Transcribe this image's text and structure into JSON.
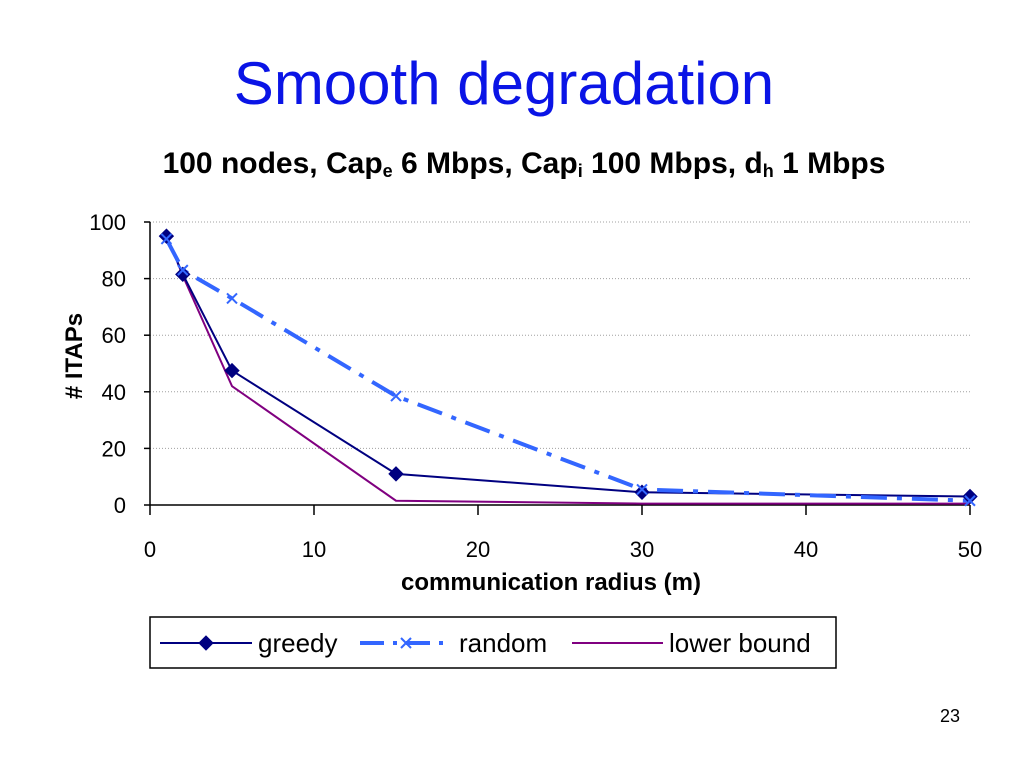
{
  "slide": {
    "title": "Smooth degradation",
    "page_number": "23"
  },
  "chart_title": {
    "p1": "100 nodes, Cap",
    "s1": "e",
    "p2": " 6 Mbps, Cap",
    "s2": "i",
    "p3": " 100 Mbps, d",
    "s3": "h",
    "p4": " 1 Mbps"
  },
  "colors": {
    "title": "#0a14e6",
    "greedy": "#000080",
    "random": "#3366ff",
    "lower_bound": "#800080",
    "grid": "#a0a0a0"
  },
  "chart_data": {
    "type": "line",
    "xlabel": "communication radius (m)",
    "ylabel": "# ITAPs",
    "xlim": [
      0,
      50
    ],
    "ylim": [
      0,
      100
    ],
    "xticks": [
      "0",
      "10",
      "20",
      "30",
      "40",
      "50"
    ],
    "yticks": [
      "0",
      "20",
      "40",
      "60",
      "80",
      "100"
    ],
    "grid": "horizontal dotted",
    "legend_position": "bottom",
    "series": [
      {
        "name": "greedy",
        "marker": "diamond",
        "style": "solid",
        "points": [
          [
            1,
            95
          ],
          [
            2,
            81.5
          ],
          [
            5,
            47.5
          ],
          [
            15,
            11
          ],
          [
            30,
            4.5
          ],
          [
            50,
            3
          ]
        ]
      },
      {
        "name": "random",
        "marker": "x",
        "style": "dash-dot",
        "points": [
          [
            1,
            94
          ],
          [
            2,
            83
          ],
          [
            5,
            73
          ],
          [
            15,
            38.5
          ],
          [
            30,
            5.5
          ],
          [
            50,
            1.5
          ]
        ]
      },
      {
        "name": "lower bound",
        "marker": "none",
        "style": "solid",
        "points": [
          [
            1,
            95.5
          ],
          [
            2,
            81
          ],
          [
            5,
            42
          ],
          [
            15,
            1.5
          ],
          [
            30,
            0.5
          ],
          [
            50,
            0.5
          ]
        ]
      }
    ]
  }
}
